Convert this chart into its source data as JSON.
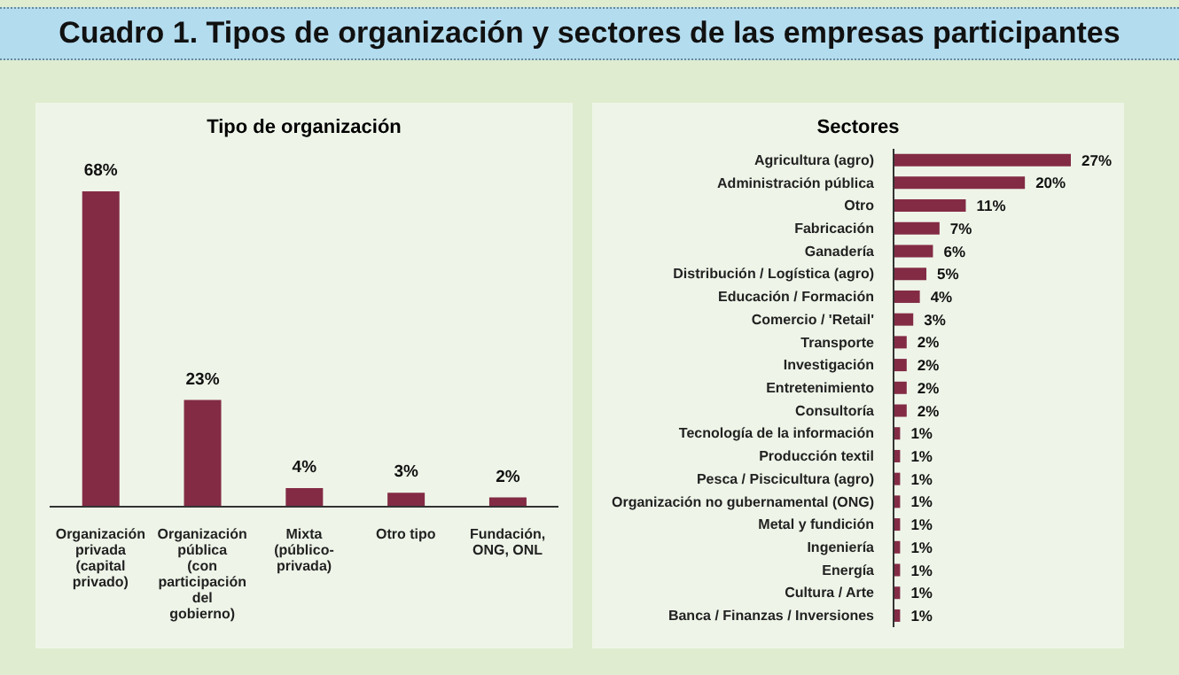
{
  "chart_data": [
    {
      "type": "bar",
      "title": "Cuadro 1. Tipos de organización y sectores de las empresas participantes",
      "subtitle": "Tipo de organización",
      "categories": [
        "Organización privada (capital privado)",
        "Organización pública (con participación del gobierno)",
        "Mixta (público-privada)",
        "Otro tipo",
        "Fundación, ONG, ONL"
      ],
      "values": [
        68,
        23,
        4,
        3,
        2
      ],
      "value_labels": [
        "68%",
        "23%",
        "4%",
        "3%",
        "2%"
      ],
      "color": "#832b45",
      "grid": false,
      "legend": false
    },
    {
      "type": "bar",
      "orientation": "horizontal",
      "title": "Sectores",
      "categories": [
        "Agricultura (agro)",
        "Administración pública",
        "Otro",
        "Fabricación",
        "Ganadería",
        "Distribución / Logística (agro)",
        "Educación / Formación",
        "Comercio / 'Retail'",
        "Transporte",
        "Investigación",
        "Entretenimiento",
        "Consultoría",
        "Tecnología de la información",
        "Producción textil",
        "Pesca / Piscicultura (agro)",
        "Organización no gubernamental (ONG)",
        "Metal y fundición",
        "Ingeniería",
        "Energía",
        "Cultura / Arte",
        "Banca / Finanzas / Inversiones"
      ],
      "values": [
        27,
        20,
        11,
        7,
        6,
        5,
        4,
        3,
        2,
        2,
        2,
        2,
        1,
        1,
        1,
        1,
        1,
        1,
        1,
        1,
        1
      ],
      "value_labels": [
        "27%",
        "20%",
        "11%",
        "7%",
        "6%",
        "5%",
        "4%",
        "3%",
        "2%",
        "2%",
        "2%",
        "2%",
        "1%",
        "1%",
        "1%",
        "1%",
        "1%",
        "1%",
        "1%",
        "1%",
        "1%"
      ],
      "color": "#832b45",
      "grid": false,
      "legend": false
    }
  ]
}
